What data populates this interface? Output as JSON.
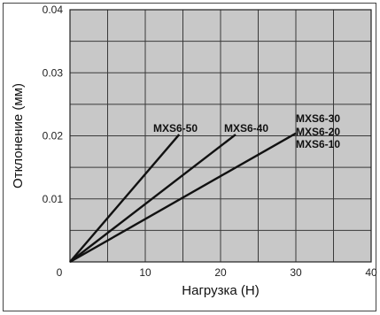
{
  "chart_data": {
    "type": "line",
    "xlabel": "Нагрузка (Н)",
    "ylabel": "Отклонение (мм)",
    "xlim": [
      0,
      40
    ],
    "ylim": [
      0,
      0.04
    ],
    "x_ticks": [
      "0",
      "10",
      "20",
      "30",
      "40"
    ],
    "y_ticks": [
      "0.01",
      "0.02",
      "0.03",
      "0.04"
    ],
    "grid": true,
    "background_color": "#c8c8c8",
    "line_color": "#111111",
    "series": [
      {
        "name": "MXS6-50",
        "x": [
          0,
          14.5
        ],
        "y": [
          0,
          0.0202
        ]
      },
      {
        "name": "MXS6-40",
        "x": [
          0,
          22
        ],
        "y": [
          0,
          0.0202
        ]
      },
      {
        "name": "MXS6-30\nMXS6-20\nMXS6-10",
        "x": [
          0,
          30
        ],
        "y": [
          0,
          0.0204
        ]
      }
    ],
    "series_labels": [
      "MXS6-50",
      "MXS6-40",
      "MXS6-30",
      "MXS6-20",
      "MXS6-10"
    ]
  }
}
